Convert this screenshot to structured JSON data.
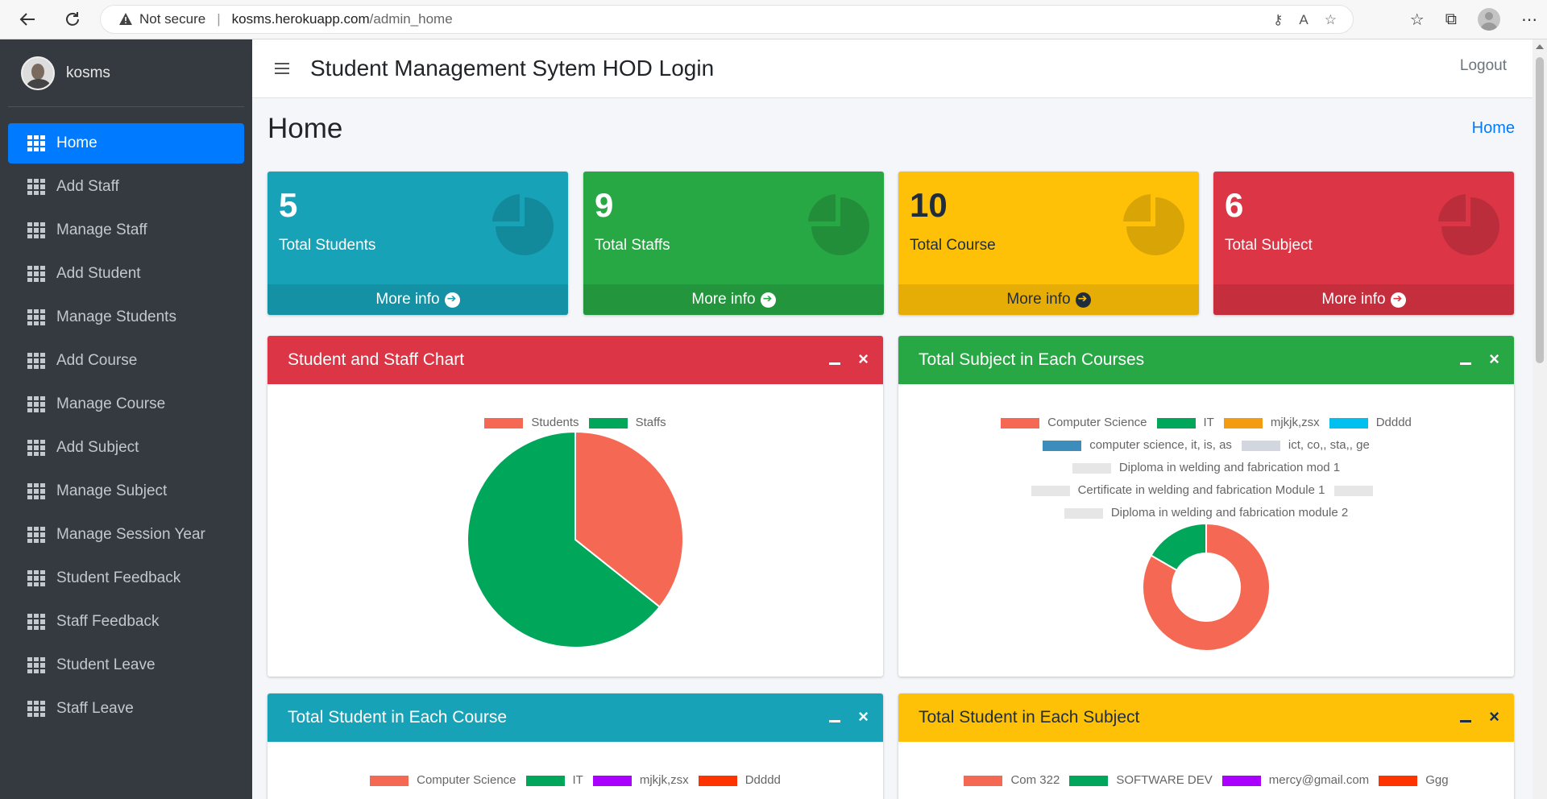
{
  "browser": {
    "security": "Not secure",
    "url_host": "kosms.herokuapp.com",
    "url_path": "/admin_home"
  },
  "sidebar": {
    "user_name": "kosms",
    "items": [
      {
        "label": "Home",
        "active": true
      },
      {
        "label": "Add Staff"
      },
      {
        "label": "Manage Staff"
      },
      {
        "label": "Add Student"
      },
      {
        "label": "Manage Students"
      },
      {
        "label": "Add Course"
      },
      {
        "label": "Manage Course"
      },
      {
        "label": "Add Subject"
      },
      {
        "label": "Manage Subject"
      },
      {
        "label": "Manage Session Year"
      },
      {
        "label": "Student Feedback"
      },
      {
        "label": "Staff Feedback"
      },
      {
        "label": "Student Leave"
      },
      {
        "label": "Staff Leave"
      }
    ]
  },
  "header": {
    "title": "Student Management Sytem HOD Login",
    "logout": "Logout"
  },
  "page": {
    "title": "Home",
    "breadcrumb": "Home"
  },
  "stats": [
    {
      "value": "5",
      "label": "Total Students",
      "more": "More info"
    },
    {
      "value": "9",
      "label": "Total Staffs",
      "more": "More info"
    },
    {
      "value": "10",
      "label": "Total Course",
      "more": "More info"
    },
    {
      "value": "6",
      "label": "Total Subject",
      "more": "More info"
    }
  ],
  "cards": {
    "student_staff": {
      "title": "Student and Staff Chart"
    },
    "subject_courses": {
      "title": "Total Subject in Each Courses"
    },
    "student_course": {
      "title": "Total Student in Each Course"
    },
    "student_subject": {
      "title": "Total Student in Each Subject"
    }
  },
  "colors": {
    "info": "#17a2b8",
    "success": "#28a745",
    "warning": "#ffc107",
    "danger": "#dc3545",
    "primary": "#007bff"
  },
  "chart_data": [
    {
      "type": "pie",
      "title": "",
      "categories": [
        "Students",
        "Staffs"
      ],
      "values": [
        5,
        9
      ],
      "colors": [
        "#f56954",
        "#00a65a"
      ],
      "legend": "top"
    },
    {
      "type": "pie",
      "title": "",
      "categories": [
        "Computer Science",
        "IT",
        "mjkjk,zsx",
        "Ddddd",
        "computer science, it, is, as",
        "ict, co,, sta,, ge",
        "Diploma in welding and fabrication mod 1",
        "Certificate in welding and fabrication Module  1",
        "",
        "Diploma in welding and fabrication module 2"
      ],
      "values": [
        5,
        1,
        0,
        0,
        0,
        0,
        0,
        0,
        0,
        0
      ],
      "colors": [
        "#f56954",
        "#00a65a",
        "#f39c12",
        "#00c0ef",
        "#3c8dbc",
        "#d2d6de",
        "#e0e0e0",
        "#e0e0e0",
        "#e0e0e0",
        "#e0e0e0"
      ],
      "legend": "top"
    },
    {
      "type": "pie",
      "title": "",
      "categories": [
        "Computer Science",
        "IT",
        "mjkjk,zsx",
        "Ddddd"
      ],
      "colors": [
        "#f56954",
        "#00a65a",
        "#aa00ff",
        "#ff3300"
      ],
      "legend": "top"
    },
    {
      "type": "pie",
      "title": "",
      "categories": [
        "Com 322",
        "SOFTWARE DEV",
        "mercy@gmail.com",
        "Ggg"
      ],
      "colors": [
        "#f56954",
        "#00a65a",
        "#aa00ff",
        "#ff3300"
      ],
      "legend": "top"
    }
  ]
}
